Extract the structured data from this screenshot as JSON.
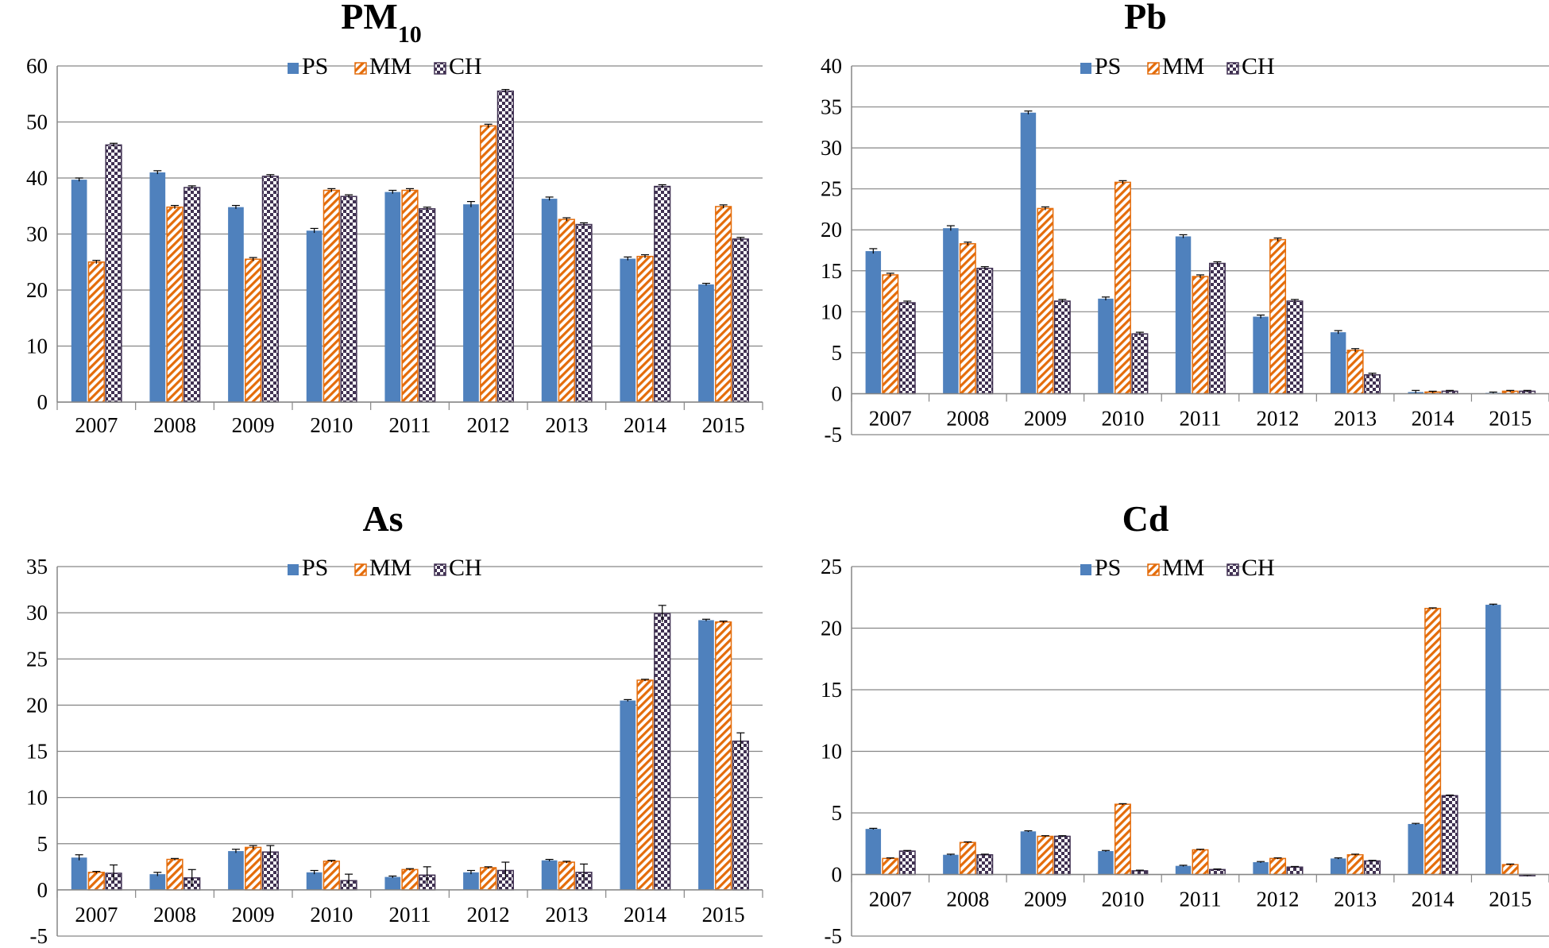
{
  "colors": {
    "PS": "#4f81bd",
    "MM": "#e46c0a",
    "CH": "#403152",
    "axis": "#868686",
    "grid": "#868686"
  },
  "chart_data": [
    {
      "type": "bar",
      "title": "PM",
      "title_subscript": "10",
      "categories": [
        "2007",
        "2008",
        "2009",
        "2010",
        "2011",
        "2012",
        "2013",
        "2014",
        "2015"
      ],
      "series": [
        {
          "name": "PS",
          "values": [
            39.7,
            41.0,
            34.8,
            30.6,
            37.5,
            35.3,
            36.3,
            25.6,
            21.0
          ],
          "errors": [
            0.3,
            0.3,
            0.3,
            0.4,
            0.3,
            0.5,
            0.3,
            0.3,
            0.2
          ]
        },
        {
          "name": "MM",
          "values": [
            25.0,
            34.8,
            25.5,
            37.8,
            37.8,
            49.3,
            32.6,
            26.0,
            34.9
          ],
          "errors": [
            0.3,
            0.3,
            0.3,
            0.3,
            0.3,
            0.3,
            0.3,
            0.3,
            0.3
          ]
        },
        {
          "name": "CH",
          "values": [
            45.9,
            38.3,
            40.3,
            36.7,
            34.5,
            55.5,
            31.7,
            38.5,
            29.1
          ],
          "errors": [
            0.3,
            0.3,
            0.3,
            0.3,
            0.3,
            0.3,
            0.3,
            0.3,
            0.3
          ]
        }
      ],
      "xlabel": "",
      "ylabel": "",
      "ylim": [
        0,
        60
      ],
      "yticks": [
        "0",
        "10",
        "20",
        "30",
        "40",
        "50",
        "60"
      ],
      "grid": true,
      "legend_position": "top-center"
    },
    {
      "type": "bar",
      "title": "Pb",
      "title_subscript": "",
      "categories": [
        "2007",
        "2008",
        "2009",
        "2010",
        "2011",
        "2012",
        "2013",
        "2014",
        "2015"
      ],
      "series": [
        {
          "name": "PS",
          "values": [
            17.4,
            20.2,
            34.3,
            11.6,
            19.2,
            9.4,
            7.5,
            0.2,
            0.1
          ],
          "errors": [
            0.3,
            0.3,
            0.2,
            0.2,
            0.2,
            0.2,
            0.2,
            0.2,
            0.1
          ]
        },
        {
          "name": "MM",
          "values": [
            14.5,
            18.3,
            22.6,
            25.8,
            14.3,
            18.8,
            5.3,
            0.2,
            0.3
          ],
          "errors": [
            0.2,
            0.2,
            0.2,
            0.2,
            0.2,
            0.2,
            0.2,
            0.1,
            0.1
          ]
        },
        {
          "name": "CH",
          "values": [
            11.1,
            15.3,
            11.3,
            7.3,
            15.9,
            11.3,
            2.3,
            0.3,
            0.3
          ],
          "errors": [
            0.2,
            0.2,
            0.2,
            0.2,
            0.2,
            0.2,
            0.2,
            0.1,
            0.1
          ]
        }
      ],
      "xlabel": "",
      "ylabel": "",
      "ylim": [
        -5,
        40
      ],
      "yticks": [
        "-5",
        "0",
        "5",
        "10",
        "15",
        "20",
        "25",
        "30",
        "35",
        "40"
      ],
      "grid": true,
      "legend_position": "top-center"
    },
    {
      "type": "bar",
      "title": "As",
      "title_subscript": "",
      "categories": [
        "2007",
        "2008",
        "2009",
        "2010",
        "2011",
        "2012",
        "2013",
        "2014",
        "2015"
      ],
      "series": [
        {
          "name": "PS",
          "values": [
            3.5,
            1.7,
            4.2,
            1.9,
            1.4,
            1.9,
            3.2,
            20.5,
            29.2
          ],
          "errors": [
            0.3,
            0.2,
            0.2,
            0.2,
            0.1,
            0.2,
            0.1,
            0.1,
            0.1
          ]
        },
        {
          "name": "MM",
          "values": [
            1.9,
            3.3,
            4.6,
            3.1,
            2.2,
            2.4,
            3.0,
            22.7,
            29.0
          ],
          "errors": [
            0.1,
            0.1,
            0.2,
            0.1,
            0.1,
            0.1,
            0.1,
            0.1,
            0.1
          ]
        },
        {
          "name": "CH",
          "values": [
            1.8,
            1.3,
            4.1,
            1.0,
            1.6,
            2.1,
            1.9,
            29.9,
            16.1
          ],
          "errors": [
            0.9,
            0.9,
            0.7,
            0.7,
            0.9,
            0.9,
            0.9,
            0.9,
            0.9
          ]
        }
      ],
      "xlabel": "",
      "ylabel": "",
      "ylim": [
        -5,
        35
      ],
      "yticks": [
        "-5",
        "0",
        "5",
        "10",
        "15",
        "20",
        "25",
        "30",
        "35"
      ],
      "grid": true,
      "legend_position": "top-center"
    },
    {
      "type": "bar",
      "title": "Cd",
      "title_subscript": "",
      "categories": [
        "2007",
        "2008",
        "2009",
        "2010",
        "2011",
        "2012",
        "2013",
        "2014",
        "2015"
      ],
      "series": [
        {
          "name": "PS",
          "values": [
            3.7,
            1.6,
            3.5,
            1.9,
            0.7,
            1.0,
            1.3,
            4.1,
            21.9
          ],
          "errors": [
            0.05,
            0.05,
            0.05,
            0.05,
            0.05,
            0.05,
            0.05,
            0.05,
            0.05
          ]
        },
        {
          "name": "MM",
          "values": [
            1.3,
            2.6,
            3.1,
            5.7,
            2.0,
            1.3,
            1.6,
            21.6,
            0.8
          ],
          "errors": [
            0.05,
            0.05,
            0.05,
            0.05,
            0.05,
            0.05,
            0.05,
            0.05,
            0.05
          ]
        },
        {
          "name": "CH",
          "values": [
            1.9,
            1.6,
            3.1,
            0.3,
            0.4,
            0.6,
            1.1,
            6.4,
            -0.1
          ],
          "errors": [
            0.05,
            0.05,
            0.05,
            0.05,
            0.05,
            0.05,
            0.05,
            0.05,
            0.05
          ]
        }
      ],
      "xlabel": "",
      "ylabel": "",
      "ylim": [
        -5,
        25
      ],
      "yticks": [
        "-5",
        "0",
        "5",
        "10",
        "15",
        "20",
        "25"
      ],
      "grid": true,
      "legend_position": "top-center"
    }
  ]
}
